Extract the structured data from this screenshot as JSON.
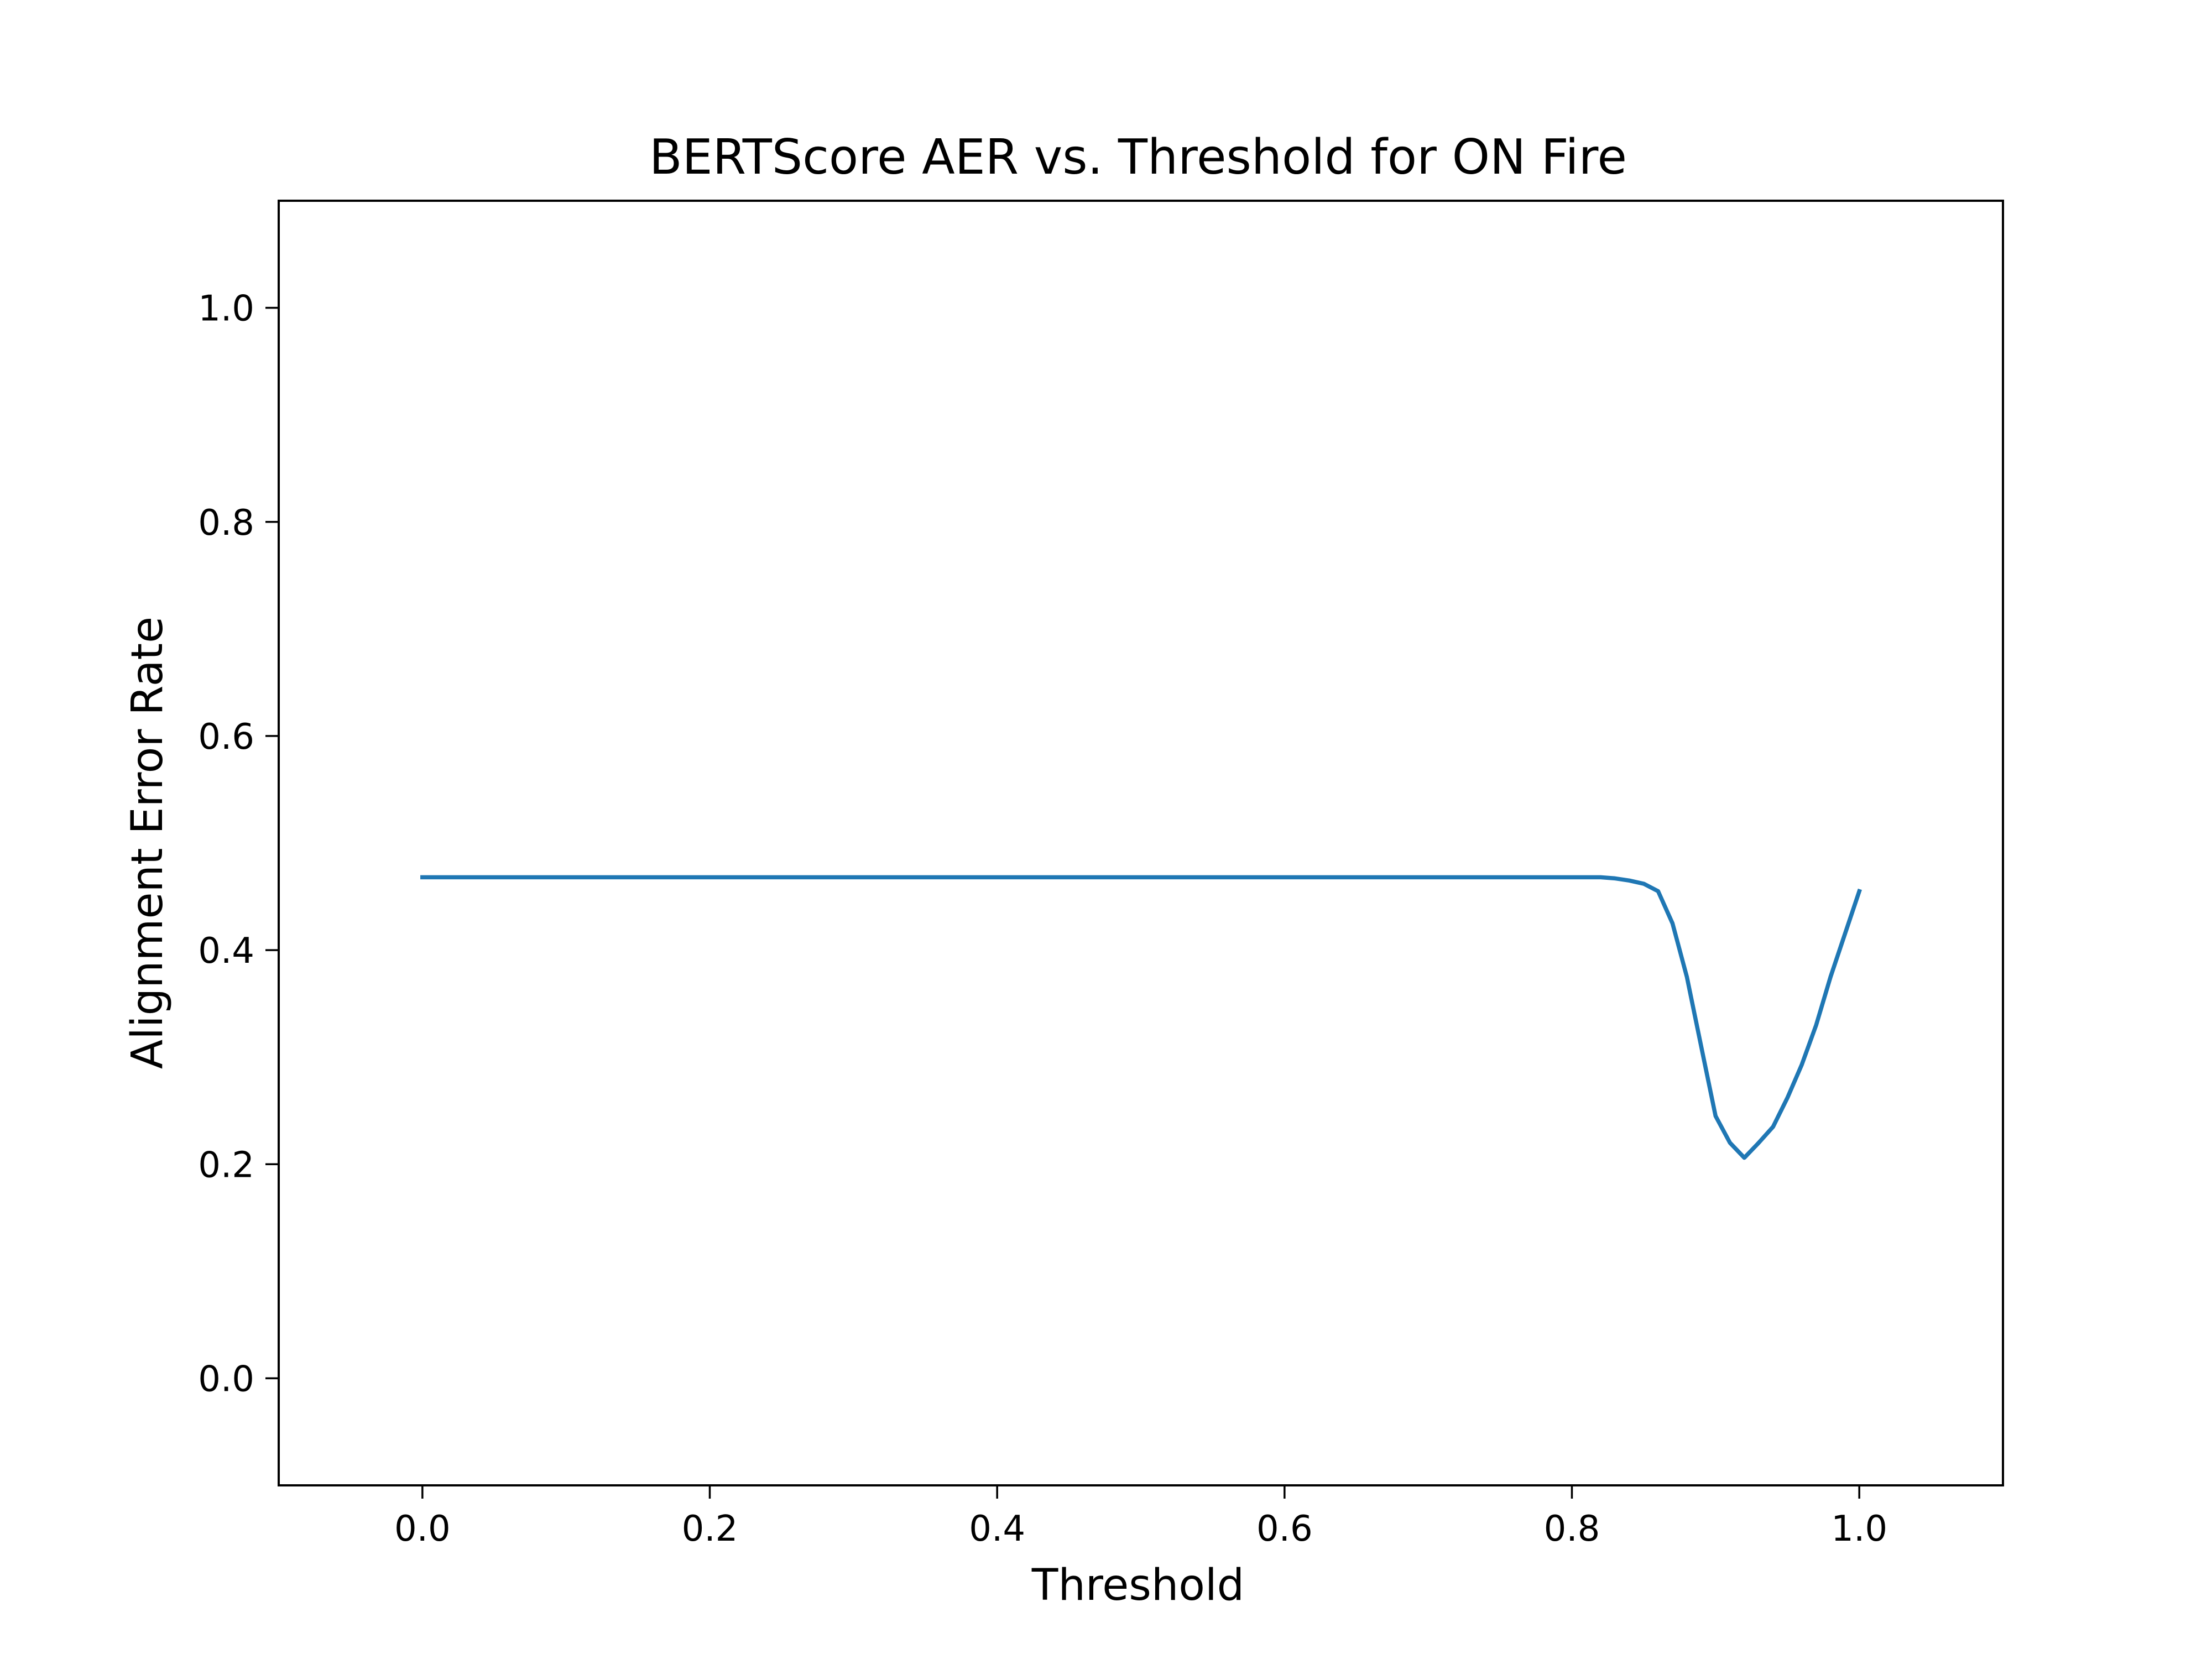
{
  "chart_data": {
    "type": "line",
    "title": "BERTScore AER vs. Threshold for ON Fire",
    "xlabel": "Threshold",
    "ylabel": "Alignment Error Rate",
    "xlim": [
      -0.1,
      1.1
    ],
    "ylim": [
      -0.1,
      1.1
    ],
    "xticks": [
      0.0,
      0.2,
      0.4,
      0.6,
      0.8,
      1.0
    ],
    "yticks": [
      0.0,
      0.2,
      0.4,
      0.6,
      0.8,
      1.0
    ],
    "xtick_labels": [
      "0.0",
      "0.2",
      "0.4",
      "0.6",
      "0.8",
      "1.0"
    ],
    "ytick_labels": [
      "0.0",
      "0.2",
      "0.4",
      "0.6",
      "0.8",
      "1.0"
    ],
    "grid": false,
    "series": [
      {
        "color": "#1f77b4",
        "x": [
          0.0,
          0.1,
          0.2,
          0.3,
          0.4,
          0.5,
          0.6,
          0.7,
          0.8,
          0.82,
          0.83,
          0.84,
          0.85,
          0.86,
          0.87,
          0.88,
          0.89,
          0.9,
          0.91,
          0.92,
          0.93,
          0.94,
          0.95,
          0.96,
          0.97,
          0.98,
          0.99,
          1.0
        ],
        "y": [
          0.468,
          0.468,
          0.468,
          0.468,
          0.468,
          0.468,
          0.468,
          0.468,
          0.468,
          0.468,
          0.467,
          0.465,
          0.462,
          0.455,
          0.425,
          0.375,
          0.31,
          0.245,
          0.22,
          0.206,
          0.22,
          0.235,
          0.262,
          0.293,
          0.33,
          0.375,
          0.415,
          0.455
        ]
      }
    ]
  }
}
